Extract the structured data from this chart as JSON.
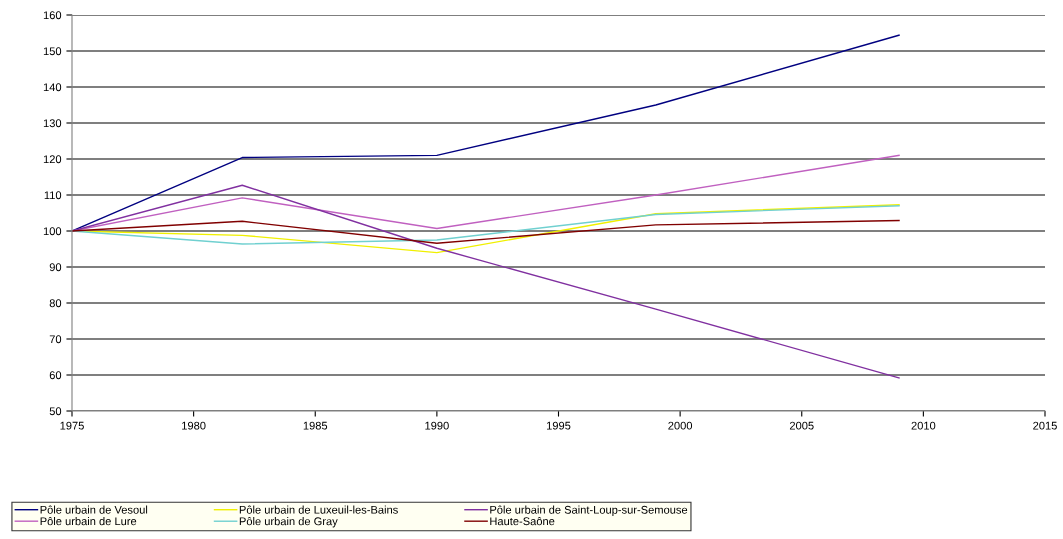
{
  "chart_data": {
    "type": "line",
    "x": [
      1975,
      1982,
      1990,
      1999,
      2009
    ],
    "series": [
      {
        "name": "Pôle urbain de Vesoul",
        "color": "#000080",
        "values": [
          100,
          120.4,
          121,
          135,
          154.4
        ]
      },
      {
        "name": "Pôle urbain de Lure",
        "color": "#c060c0",
        "values": [
          100,
          109.2,
          100.7,
          110,
          121
        ]
      },
      {
        "name": "Pôle urbain de Luxeuil-les-Bains",
        "color": "#f0f000",
        "values": [
          100,
          98.8,
          94,
          104.8,
          107.3
        ]
      },
      {
        "name": "Pôle urbain de Gray",
        "color": "#70d0d0",
        "values": [
          100,
          96.4,
          97.5,
          104.6,
          107
        ]
      },
      {
        "name": "Pôle urbain de Saint-Loup-sur-Semouse",
        "color": "#8030a0",
        "values": [
          100,
          112.7,
          95.2,
          78.3,
          59.2
        ]
      },
      {
        "name": "Haute-Saône",
        "color": "#800000",
        "values": [
          100,
          102.7,
          96.6,
          101.7,
          102.9
        ]
      }
    ],
    "xlim": [
      1975,
      2015
    ],
    "xticks": [
      1975,
      1980,
      1985,
      1990,
      1995,
      2000,
      2005,
      2010,
      2015
    ],
    "ylim": [
      50,
      160
    ],
    "yticks": [
      50,
      60,
      70,
      80,
      90,
      100,
      110,
      120,
      130,
      140,
      150,
      160
    ],
    "grid": "y",
    "legend": "bottom",
    "marker": "none",
    "line_style": "solid"
  }
}
